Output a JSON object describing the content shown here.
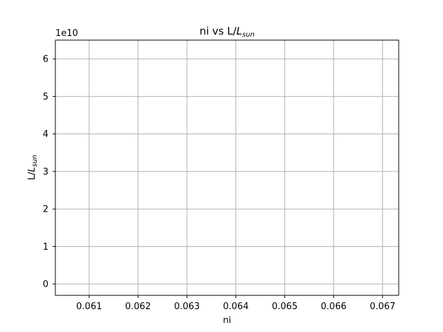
{
  "chart_data": {
    "type": "line",
    "title": {
      "prefix": "ni vs L/",
      "symbol": "L",
      "subscript": "sun"
    },
    "xlabel": "ni",
    "ylabel": {
      "prefix": "L/",
      "symbol": "L",
      "subscript": "sun"
    },
    "y_offset_label": "1e10",
    "xlim": [
      0.06031,
      0.06733
    ],
    "ylim": [
      -0.3,
      6.5
    ],
    "x_ticks": [
      0.061,
      0.062,
      0.063,
      0.064,
      0.065,
      0.066,
      0.067
    ],
    "x_tick_labels": [
      "0.061",
      "0.062",
      "0.063",
      "0.064",
      "0.065",
      "0.066",
      "0.067"
    ],
    "y_ticks": [
      0,
      1,
      2,
      3,
      4,
      5,
      6
    ],
    "y_tick_labels": [
      "0",
      "1",
      "2",
      "3",
      "4",
      "5",
      "6"
    ],
    "grid": true,
    "grid_color": "#b0b0b0",
    "axes_color": "#000000",
    "series": []
  }
}
